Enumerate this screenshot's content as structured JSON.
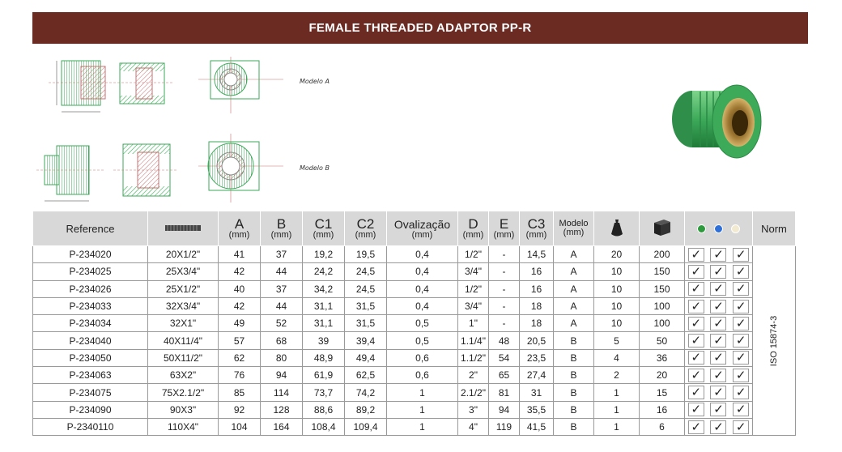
{
  "title": "FEMALE THREADED ADAPTOR PP-R",
  "drawing_labels": {
    "model_a": "Modelo A",
    "model_b": "Modelo B"
  },
  "colors": {
    "header_bg": "#6b2a22",
    "pipe_green": "#3daa5a",
    "brass": "#b08a3c",
    "dot_green": "#2e9a3e",
    "dot_blue": "#2f6fd8",
    "dot_cream": "#f2ead0"
  },
  "table": {
    "headers": {
      "reference": "Reference",
      "thread_icon": "thread-gauge-icon",
      "A": "A",
      "B": "B",
      "C1": "C1",
      "C2": "C2",
      "ovalizacao": "Ovalização",
      "D": "D",
      "E": "E",
      "C3": "C3",
      "modelo": "Modelo",
      "unit": "(mm)",
      "bag_icon": "bag-icon",
      "box_icon": "box-icon",
      "color_dots": "color-dots-icon",
      "norm": "Norm"
    },
    "norm_value": "ISO 15874-3",
    "check": "✓",
    "rows": [
      [
        "P-234020",
        "20X1/2\"",
        "41",
        "37",
        "19,2",
        "19,5",
        "0,4",
        "1/2\"",
        "-",
        "14,5",
        "A",
        "20",
        "200"
      ],
      [
        "P-234025",
        "25X3/4\"",
        "42",
        "44",
        "24,2",
        "24,5",
        "0,4",
        "3/4\"",
        "-",
        "16",
        "A",
        "10",
        "150"
      ],
      [
        "P-234026",
        "25X1/2\"",
        "40",
        "37",
        "34,2",
        "24,5",
        "0,4",
        "1/2\"",
        "-",
        "16",
        "A",
        "10",
        "150"
      ],
      [
        "P-234033",
        "32X3/4\"",
        "42",
        "44",
        "31,1",
        "31,5",
        "0,4",
        "3/4\"",
        "-",
        "18",
        "A",
        "10",
        "100"
      ],
      [
        "P-234034",
        "32X1\"",
        "49",
        "52",
        "31,1",
        "31,5",
        "0,5",
        "1\"",
        "-",
        "18",
        "A",
        "10",
        "100"
      ],
      [
        "P-234040",
        "40X11/4\"",
        "57",
        "68",
        "39",
        "39,4",
        "0,5",
        "1.1/4\"",
        "48",
        "20,5",
        "B",
        "5",
        "50"
      ],
      [
        "P-234050",
        "50X11/2\"",
        "62",
        "80",
        "48,9",
        "49,4",
        "0,6",
        "1.1/2\"",
        "54",
        "23,5",
        "B",
        "4",
        "36"
      ],
      [
        "P-234063",
        "63X2\"",
        "76",
        "94",
        "61,9",
        "62,5",
        "0,6",
        "2\"",
        "65",
        "27,4",
        "B",
        "2",
        "20"
      ],
      [
        "P-234075",
        "75X2.1/2\"",
        "85",
        "114",
        "73,7",
        "74,2",
        "1",
        "2.1/2\"",
        "81",
        "31",
        "B",
        "1",
        "15"
      ],
      [
        "P-234090",
        "90X3\"",
        "92",
        "128",
        "88,6",
        "89,2",
        "1",
        "3\"",
        "94",
        "35,5",
        "B",
        "1",
        "16"
      ],
      [
        "P-2340110",
        "110X4\"",
        "104",
        "164",
        "108,4",
        "109,4",
        "1",
        "4\"",
        "119",
        "41,5",
        "B",
        "1",
        "6"
      ]
    ]
  }
}
